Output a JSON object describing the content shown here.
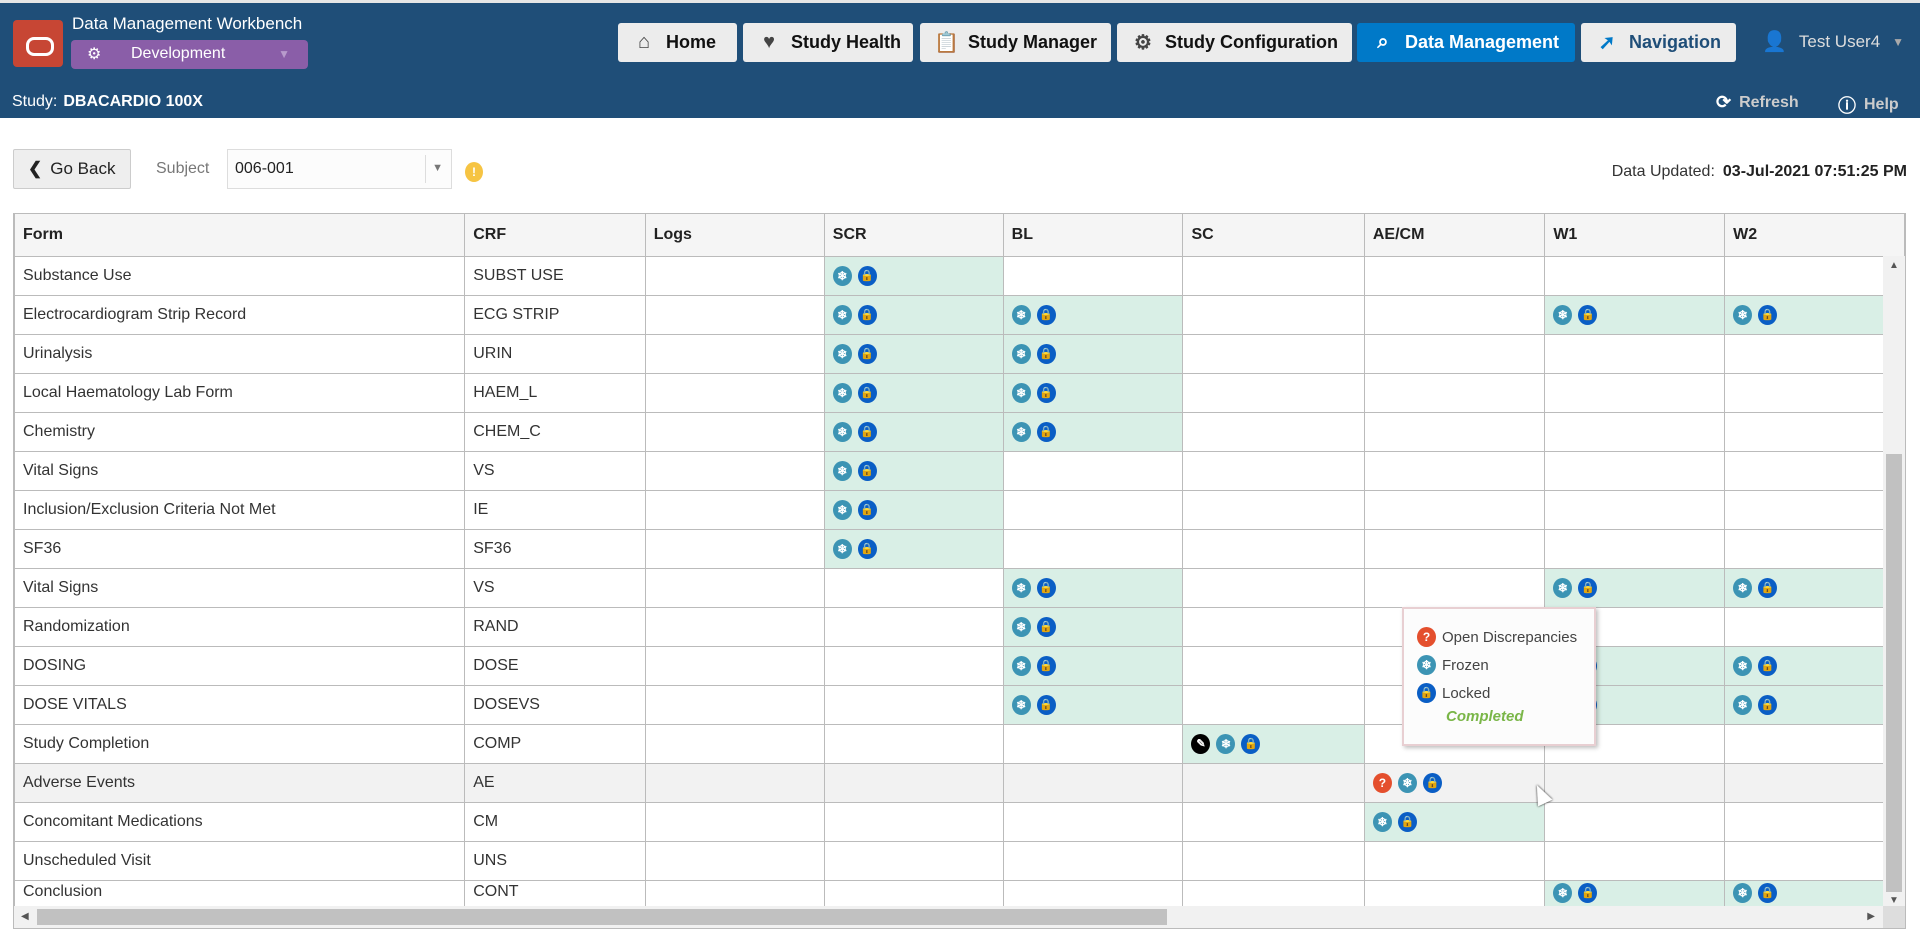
{
  "app": {
    "title": "Data Management Workbench",
    "environment": "Development",
    "study_label": "Study:",
    "study_name": "DBACARDIO 100X"
  },
  "nav": [
    {
      "label": "Home",
      "icon": "home-icon"
    },
    {
      "label": "Study Health",
      "icon": "heart-pulse-icon"
    },
    {
      "label": "Study Manager",
      "icon": "clipboard-icon"
    },
    {
      "label": "Study Configuration",
      "icon": "gear-pencil-icon"
    },
    {
      "label": "Data Management",
      "icon": "search-icon",
      "active": true
    },
    {
      "label": "Navigation",
      "icon": "navigation-icon"
    }
  ],
  "user": {
    "name": "Test User4"
  },
  "tools": {
    "refresh": "Refresh",
    "help": "Help"
  },
  "toolbar": {
    "go_back": "Go Back",
    "subject_label": "Subject",
    "subject_value": "006-001",
    "data_updated_label": "Data Updated:",
    "data_updated_value": "03-Jul-2021 07:51:25 PM"
  },
  "table": {
    "columns": [
      "Form",
      "CRF",
      "Logs",
      "SCR",
      "BL",
      "SC",
      "AE/CM",
      "W1",
      "W2"
    ],
    "rows": [
      {
        "form": "Substance Use",
        "crf": "SUBST USE",
        "cells": {
          "SCR": [
            "F",
            "L"
          ]
        }
      },
      {
        "form": "Electrocardiogram Strip Record",
        "crf": "ECG STRIP",
        "cells": {
          "SCR": [
            "F",
            "L"
          ],
          "BL": [
            "F",
            "L"
          ],
          "W1": [
            "F",
            "L"
          ],
          "W2": [
            "F",
            "L"
          ]
        }
      },
      {
        "form": "Urinalysis",
        "crf": "URIN",
        "cells": {
          "SCR": [
            "F",
            "L"
          ],
          "BL": [
            "F",
            "L"
          ]
        }
      },
      {
        "form": "Local Haematology Lab Form",
        "crf": "HAEM_L",
        "cells": {
          "SCR": [
            "F",
            "L"
          ],
          "BL": [
            "F",
            "L"
          ]
        }
      },
      {
        "form": "Chemistry",
        "crf": "CHEM_C",
        "cells": {
          "SCR": [
            "F",
            "L"
          ],
          "BL": [
            "F",
            "L"
          ]
        }
      },
      {
        "form": "Vital Signs",
        "crf": "VS",
        "cells": {
          "SCR": [
            "F",
            "L"
          ]
        }
      },
      {
        "form": "Inclusion/Exclusion Criteria Not Met",
        "crf": "IE",
        "cells": {
          "SCR": [
            "F",
            "L"
          ]
        }
      },
      {
        "form": "SF36",
        "crf": "SF36",
        "cells": {
          "SCR": [
            "F",
            "L"
          ]
        }
      },
      {
        "form": "Vital Signs",
        "crf": "VS",
        "cells": {
          "BL": [
            "F",
            "L"
          ],
          "W1": [
            "F",
            "L"
          ],
          "W2": [
            "F",
            "L"
          ]
        }
      },
      {
        "form": "Randomization",
        "crf": "RAND",
        "cells": {
          "BL": [
            "F",
            "L"
          ]
        }
      },
      {
        "form": "DOSING",
        "crf": "DOSE",
        "cells": {
          "BL": [
            "F",
            "L"
          ],
          "W1": [
            "F",
            "L"
          ],
          "W2": [
            "F",
            "L"
          ]
        }
      },
      {
        "form": "DOSE VITALS",
        "crf": "DOSEVS",
        "cells": {
          "BL": [
            "F",
            "L"
          ],
          "W1": [
            "F",
            "L"
          ],
          "W2": [
            "F",
            "L"
          ]
        }
      },
      {
        "form": "Study Completion",
        "crf": "COMP",
        "cells": {
          "SC": [
            "S",
            "F",
            "L"
          ]
        }
      },
      {
        "form": "Adverse Events",
        "crf": "AE",
        "hover": true,
        "cells": {
          "AE/CM": [
            "D",
            "F",
            "L"
          ]
        }
      },
      {
        "form": "Concomitant Medications",
        "crf": "CM",
        "cells": {
          "AE/CM": [
            "F",
            "L"
          ]
        }
      },
      {
        "form": "Unscheduled Visit",
        "crf": "UNS",
        "cells": {}
      },
      {
        "form": "Conclusion",
        "crf": "CONT",
        "cells": {
          "W1": [
            "F",
            "L"
          ],
          "W2": [
            "F",
            "L"
          ]
        }
      }
    ]
  },
  "status_icons": {
    "D": "open-discrepancy-icon",
    "F": "frozen-icon",
    "L": "locked-icon",
    "S": "signed-icon"
  },
  "tooltip": {
    "items": [
      {
        "key": "D",
        "label": "Open Discrepancies"
      },
      {
        "key": "F",
        "label": "Frozen"
      },
      {
        "key": "L",
        "label": "Locked"
      }
    ],
    "status": "Completed"
  },
  "colors": {
    "header": "#1f4e78",
    "active_nav": "#0079c8",
    "completed_cell": "#d9efe6",
    "discrepancy_cell": "#ecd4d5",
    "environment": "#8a5ea8",
    "completed_text": "#7ab648"
  }
}
